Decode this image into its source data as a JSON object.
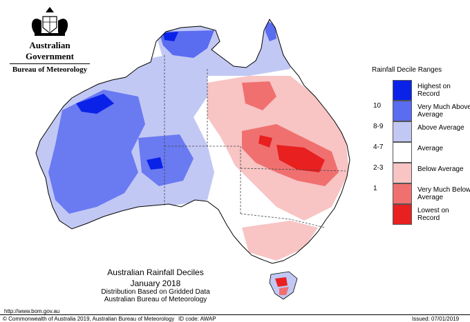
{
  "header": {
    "government": "Australian Government",
    "bureau": "Bureau of Meteorology"
  },
  "legend": {
    "title": "Rainfall Decile Ranges",
    "items": [
      {
        "label": "Highest on Record",
        "range": "",
        "color": "#0a22e8"
      },
      {
        "label": "Very Much Above Average",
        "range": "10",
        "color": "#5a6cf0"
      },
      {
        "label": "Above Average",
        "range": "8-9",
        "color": "#c2c8f4"
      },
      {
        "label": "Average",
        "range": "4-7",
        "color": "#ffffff"
      },
      {
        "label": "Below Average",
        "range": "2-3",
        "color": "#f8c4c4"
      },
      {
        "label": "Very Much Below Average",
        "range": "1",
        "color": "#f07070"
      },
      {
        "label": "Lowest on Record",
        "range": "",
        "color": "#e82020"
      }
    ]
  },
  "caption": {
    "title": "Australian Rainfall Deciles",
    "period": "January 2018",
    "note1": "Distribution Based on Gridded Data",
    "note2": "Australian Bureau of Meteorology"
  },
  "footer": {
    "url": "http://www.bom.gov.au",
    "copyright": "© Commonwealth of Australia 2019, Australian Bureau of Meteorology",
    "id_code": "ID code: AWAP",
    "issued": "Issued: 07/01/2019"
  }
}
